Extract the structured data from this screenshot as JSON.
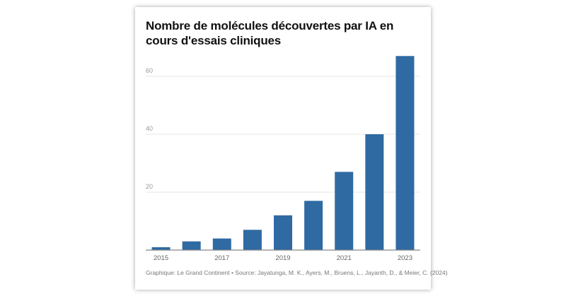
{
  "chart_data": {
    "type": "bar",
    "title": "Nombre de molécules découvertes par IA en cours d'essais cliniques",
    "categories": [
      "2015",
      "2016",
      "2017",
      "2018",
      "2019",
      "2020",
      "2021",
      "2022",
      "2023"
    ],
    "values": [
      1,
      3,
      4,
      7,
      12,
      17,
      27,
      40,
      67
    ],
    "x_tick_labels": [
      "2015",
      "2017",
      "2019",
      "2021",
      "2023"
    ],
    "y_ticks": [
      20,
      40,
      60
    ],
    "ylim": [
      0,
      70
    ],
    "xlabel": "",
    "ylabel": "",
    "grid": true,
    "bar_color": "#2f6aa3",
    "source": "Graphique: Le Grand Continent • Source: Jayatunga, M. K., Ayers, M., Bruens, L., Jayanth, D., & Meier, C. (2024)"
  }
}
